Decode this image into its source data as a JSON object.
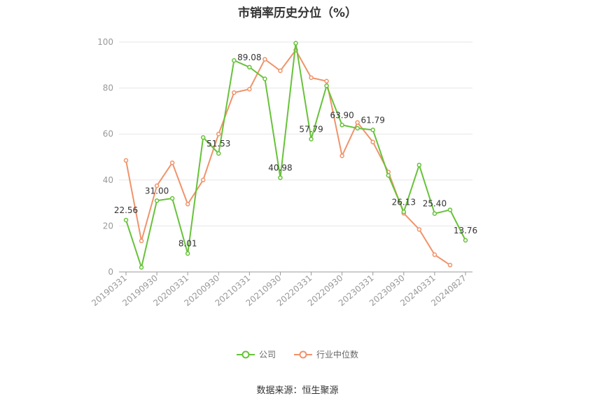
{
  "chart_data": {
    "type": "line",
    "title": "市销率历史分位（%）",
    "xlabel": "",
    "ylabel": "",
    "ylim": [
      0,
      100
    ],
    "yticks": [
      0,
      20,
      40,
      60,
      80,
      100
    ],
    "grid": true,
    "legend_position": "bottom",
    "x_tick_labels": [
      "20190331",
      "20190930",
      "20200331",
      "20200930",
      "20210331",
      "20210930",
      "20220331",
      "20220930",
      "20230331",
      "20230930",
      "20240331",
      "20240827"
    ],
    "series": [
      {
        "name": "公司",
        "color": "#67c23a",
        "values": [
          22.56,
          2.0,
          31.0,
          32.0,
          8.01,
          58.5,
          51.53,
          92.0,
          89.08,
          84.0,
          40.98,
          99.5,
          57.79,
          81.0,
          63.9,
          62.5,
          61.79,
          42.0,
          26.13,
          46.5,
          25.4,
          27.0,
          13.76
        ],
        "labels": [
          "22.56",
          "",
          "31.00",
          "",
          "8.01",
          "",
          "51.53",
          "",
          "89.08",
          "",
          "40.98",
          "",
          "57.79",
          "",
          "63.90",
          "",
          "61.79",
          "",
          "26.13",
          "",
          "25.40",
          "",
          "13.76"
        ]
      },
      {
        "name": "行业中位数",
        "color": "#f0936a",
        "values": [
          48.5,
          13.5,
          37.5,
          47.5,
          29.5,
          40.0,
          60.0,
          78.0,
          79.5,
          92.5,
          87.5,
          96.5,
          84.5,
          83.0,
          50.5,
          65.0,
          56.5,
          43.5,
          25.5,
          18.5,
          7.5,
          3.0,
          null
        ]
      }
    ]
  },
  "source": "数据来源：恒生聚源"
}
